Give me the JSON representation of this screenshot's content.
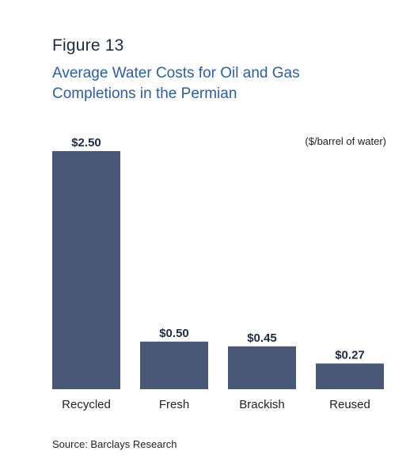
{
  "figure_label": "Figure 13",
  "source": "Source: Barclays Research",
  "colors": {
    "bar": "#4a5878",
    "title": "#2f5e9e"
  },
  "chart_data": {
    "type": "bar",
    "title": "Average Water Costs for Oil and Gas Completions in the Permian",
    "unit_label": "($/barrel of water)",
    "categories": [
      "Recycled",
      "Fresh",
      "Brackish",
      "Reused"
    ],
    "values": [
      2.5,
      0.5,
      0.45,
      0.27
    ],
    "data_labels": [
      "$2.50",
      "$0.50",
      "$0.45",
      "$0.27"
    ],
    "xlabel": "",
    "ylabel": "",
    "grid": false,
    "legend": "none"
  }
}
